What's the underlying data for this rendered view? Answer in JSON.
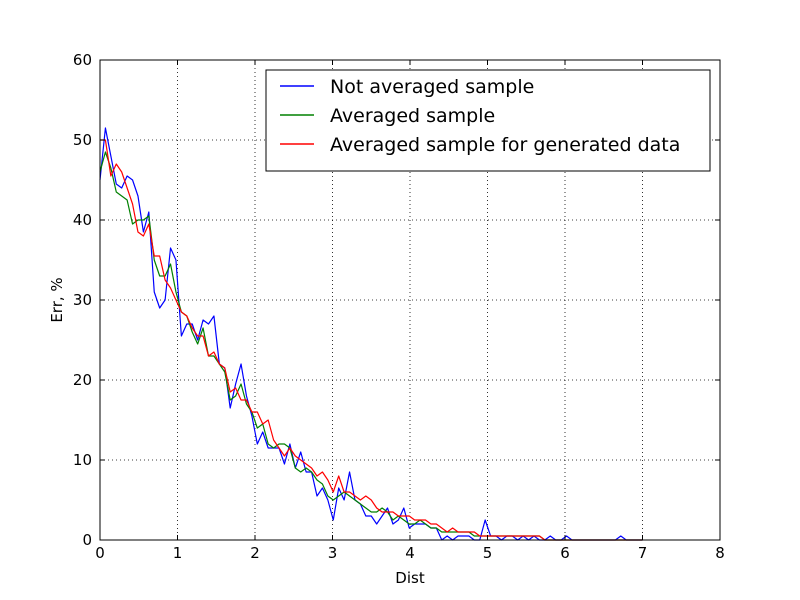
{
  "chart_data": {
    "type": "line",
    "title": "",
    "xlabel": "Dist",
    "ylabel": "Err, %",
    "xlim": [
      0,
      8
    ],
    "ylim": [
      0,
      60
    ],
    "xticks": [
      0,
      1,
      2,
      3,
      4,
      5,
      6,
      7,
      8
    ],
    "yticks": [
      0,
      10,
      20,
      30,
      40,
      50,
      60
    ],
    "grid": true,
    "legend_position": "top-right",
    "series": [
      {
        "name": "Not averaged sample",
        "color": "#0000ff",
        "x": [
          0,
          0.07,
          0.14,
          0.21,
          0.28,
          0.35,
          0.42,
          0.49,
          0.56,
          0.63,
          0.7,
          0.77,
          0.84,
          0.91,
          0.98,
          1.05,
          1.12,
          1.19,
          1.26,
          1.33,
          1.4,
          1.47,
          1.54,
          1.61,
          1.68,
          1.75,
          1.82,
          1.89,
          1.96,
          2.03,
          2.1,
          2.17,
          2.24,
          2.31,
          2.38,
          2.45,
          2.52,
          2.59,
          2.66,
          2.73,
          2.8,
          2.87,
          2.94,
          3.01,
          3.08,
          3.15,
          3.22,
          3.29,
          3.36,
          3.43,
          3.5,
          3.57,
          3.64,
          3.71,
          3.78,
          3.85,
          3.92,
          3.99,
          4.06,
          4.13,
          4.2,
          4.27,
          4.34,
          4.41,
          4.48,
          4.55,
          4.62,
          4.69,
          4.76,
          4.83,
          4.9,
          4.97,
          5.04,
          5.11,
          5.18,
          5.25,
          5.32,
          5.39,
          5.46,
          5.53,
          5.6,
          5.67,
          5.74,
          5.81,
          5.88,
          5.95,
          6.02,
          6.09,
          6.16,
          6.23,
          6.3,
          6.37,
          6.44,
          6.51,
          6.58,
          6.65,
          6.72,
          6.79,
          6.86,
          6.93,
          7.0
        ],
        "y": [
          45,
          51.5,
          48,
          44.5,
          44,
          45.5,
          45,
          43,
          38.5,
          41,
          31,
          29,
          30,
          36.5,
          35,
          25.5,
          27,
          27,
          25,
          27.5,
          27,
          28,
          22,
          21.5,
          16.5,
          19.5,
          22,
          18,
          15.5,
          12,
          13.5,
          11.5,
          11.5,
          11.5,
          9.5,
          12,
          9,
          11,
          8.5,
          8.5,
          5.5,
          6.5,
          5,
          2.5,
          6.5,
          5,
          8.5,
          5,
          4.5,
          3,
          3,
          2,
          3,
          4,
          2,
          2.5,
          4,
          1.5,
          2,
          2,
          2,
          1.5,
          1.5,
          0,
          0.5,
          0,
          0.5,
          0.5,
          0.5,
          0,
          0,
          2.5,
          0.5,
          0.5,
          0,
          0.5,
          0.5,
          0,
          0.5,
          0,
          0.5,
          0,
          0,
          0.5,
          0,
          0,
          0.5,
          0,
          0,
          0,
          0,
          0,
          0,
          0,
          0,
          0,
          0.5,
          0,
          0,
          0,
          0
        ]
      },
      {
        "name": "Averaged sample",
        "color": "#008000",
        "x": [
          0,
          0.07,
          0.14,
          0.21,
          0.28,
          0.35,
          0.42,
          0.49,
          0.56,
          0.63,
          0.7,
          0.77,
          0.84,
          0.91,
          0.98,
          1.05,
          1.12,
          1.19,
          1.26,
          1.33,
          1.4,
          1.47,
          1.54,
          1.61,
          1.68,
          1.75,
          1.82,
          1.89,
          1.96,
          2.03,
          2.1,
          2.17,
          2.24,
          2.31,
          2.38,
          2.45,
          2.52,
          2.59,
          2.66,
          2.73,
          2.8,
          2.87,
          2.94,
          3.01,
          3.08,
          3.15,
          3.22,
          3.29,
          3.36,
          3.43,
          3.5,
          3.57,
          3.64,
          3.71,
          3.78,
          3.85,
          3.92,
          3.99,
          4.06,
          4.13,
          4.2,
          4.27,
          4.34,
          4.41,
          4.48,
          4.55,
          4.62,
          4.69,
          4.76,
          4.83,
          4.9,
          4.97,
          5.04,
          5.11,
          5.18,
          5.25,
          5.32,
          5.39,
          5.46,
          5.53,
          5.6,
          5.67,
          5.74,
          5.81,
          5.88,
          5.95,
          6.02,
          6.09,
          6.16,
          6.23,
          6.3,
          6.37,
          6.44,
          6.51,
          6.58,
          6.65,
          6.72,
          6.79,
          6.86,
          6.93,
          7.0
        ],
        "y": [
          46,
          48.5,
          46.5,
          43.5,
          43,
          42.5,
          39.5,
          40,
          40,
          40.5,
          35,
          33,
          33,
          34.5,
          31,
          28.5,
          28,
          26,
          24.5,
          26.5,
          23,
          23,
          22,
          21,
          17.5,
          18,
          19.5,
          17,
          16,
          14,
          14.5,
          12,
          11.5,
          12,
          12,
          11.5,
          9,
          8.5,
          9,
          8.5,
          7.5,
          7,
          5.5,
          5,
          5.5,
          6,
          5.5,
          5,
          4.5,
          4,
          3.5,
          3.5,
          4,
          3.5,
          2.5,
          3,
          2.5,
          2,
          2,
          2.5,
          2,
          1.5,
          1.5,
          1,
          1,
          1,
          1,
          1,
          1,
          0.5,
          0.5,
          0.5,
          0.5,
          0.5,
          0.5,
          0.5,
          0.5,
          0.5,
          0.5,
          0.5,
          0.5,
          0.5,
          0,
          0,
          0,
          0,
          0,
          0,
          0,
          0,
          0,
          0,
          0,
          0,
          0,
          0,
          0,
          0,
          0,
          0,
          0
        ]
      },
      {
        "name": "Averaged sample for generated data",
        "color": "#ff0000",
        "x": [
          0,
          0.07,
          0.14,
          0.21,
          0.28,
          0.35,
          0.42,
          0.49,
          0.56,
          0.63,
          0.7,
          0.77,
          0.84,
          0.91,
          0.98,
          1.05,
          1.12,
          1.19,
          1.26,
          1.33,
          1.4,
          1.47,
          1.54,
          1.61,
          1.68,
          1.75,
          1.82,
          1.89,
          1.96,
          2.03,
          2.1,
          2.17,
          2.24,
          2.31,
          2.38,
          2.45,
          2.52,
          2.59,
          2.66,
          2.73,
          2.8,
          2.87,
          2.94,
          3.01,
          3.08,
          3.15,
          3.22,
          3.29,
          3.36,
          3.43,
          3.5,
          3.57,
          3.64,
          3.71,
          3.78,
          3.85,
          3.92,
          3.99,
          4.06,
          4.13,
          4.2,
          4.27,
          4.34,
          4.41,
          4.48,
          4.55,
          4.62,
          4.69,
          4.76,
          4.83,
          4.9,
          4.97,
          5.04,
          5.11,
          5.18,
          5.25,
          5.32,
          5.39,
          5.46,
          5.53,
          5.6,
          5.67,
          5.74,
          5.81,
          5.88,
          5.95,
          6.02,
          6.09,
          6.16,
          6.23,
          6.3,
          6.37,
          6.44,
          6.51,
          6.58,
          6.65,
          6.72,
          6.79,
          6.86,
          6.93,
          7.0
        ],
        "y": [
          50,
          50,
          45.5,
          47,
          46,
          44,
          42,
          38.5,
          38,
          39.5,
          35.5,
          35.5,
          32.5,
          31.5,
          30,
          28.5,
          28,
          26.5,
          25.5,
          25.5,
          23,
          23.5,
          22,
          21.5,
          18.5,
          19,
          17.5,
          17.5,
          16,
          16,
          14.5,
          15,
          12.5,
          11.5,
          10.5,
          11.5,
          10.5,
          10,
          9.5,
          9,
          8,
          8.5,
          7.5,
          6,
          8,
          6,
          6,
          5.5,
          5,
          5.5,
          5,
          4,
          3.5,
          3.5,
          3.5,
          3,
          3,
          3,
          2.5,
          2.5,
          2.5,
          2,
          2,
          1.5,
          1,
          1.5,
          1,
          1,
          1,
          1,
          0.5,
          0.5,
          0.5,
          0.5,
          0.5,
          0.5,
          0.5,
          0.5,
          0.5,
          0.5,
          0.5,
          0.5,
          0,
          0,
          0,
          0,
          0,
          0,
          0,
          0,
          0,
          0,
          0,
          0,
          0,
          0,
          0,
          0,
          0,
          0,
          0
        ]
      }
    ]
  }
}
